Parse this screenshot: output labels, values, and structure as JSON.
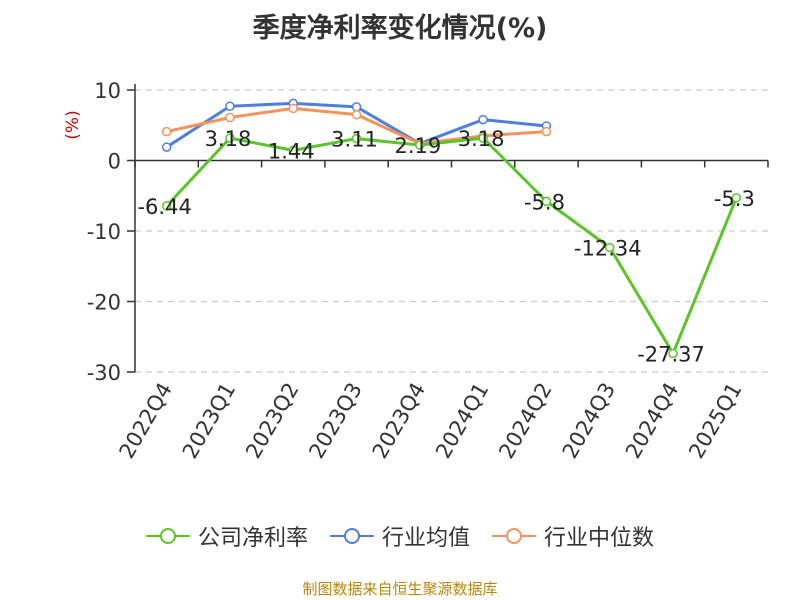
{
  "chart_data": {
    "type": "line",
    "title": "季度净利率变化情况(%)",
    "ylabel": "(%)",
    "xlabel": "",
    "categories": [
      "2022Q4",
      "2023Q1",
      "2023Q2",
      "2023Q3",
      "2023Q4",
      "2024Q1",
      "2024Q2",
      "2024Q3",
      "2024Q4",
      "2025Q1"
    ],
    "ylim": [
      -30,
      10
    ],
    "yticks": [
      10,
      0,
      -10,
      -20,
      -30
    ],
    "grid": true,
    "legend_position": "bottom",
    "series": [
      {
        "name": "公司净利率",
        "color": "#5ac42a",
        "values": [
          -6.44,
          3.18,
          1.44,
          3.11,
          2.19,
          3.18,
          -5.8,
          -12.34,
          -27.37,
          -5.3
        ],
        "labels": [
          "-6.44",
          "3.18",
          "1.44",
          "3.11",
          "2.19",
          "3.18",
          "-5.8",
          "-12.34",
          "-27.37",
          "-5.3"
        ]
      },
      {
        "name": "行业均值",
        "color": "#4e7fe0",
        "values": [
          1.9,
          7.7,
          8.1,
          7.6,
          2.4,
          5.8,
          4.9,
          null,
          null,
          null
        ]
      },
      {
        "name": "行业中位数",
        "color": "#f5935c",
        "values": [
          4.1,
          6.1,
          7.4,
          6.5,
          2.4,
          3.5,
          4.1,
          null,
          null,
          null
        ]
      }
    ]
  },
  "footer": {
    "source": "制图数据来自恒生聚源数据库"
  }
}
